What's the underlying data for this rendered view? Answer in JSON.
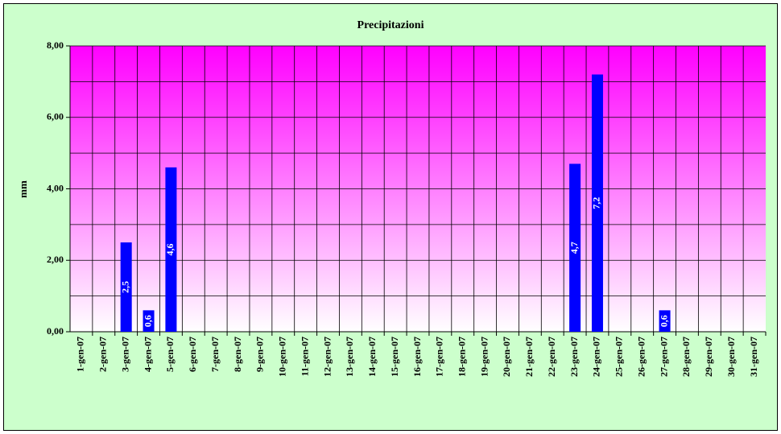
{
  "chart_data": {
    "type": "bar",
    "title": "Precipitazioni",
    "y_label": "mm",
    "categories": [
      "1-gen-07",
      "2-gen-07",
      "3-gen-07",
      "4-gen-07",
      "5-gen-07",
      "6-gen-07",
      "7-gen-07",
      "8-gen-07",
      "9-gen-07",
      "10-gen-07",
      "11-gen-07",
      "12-gen-07",
      "13-gen-07",
      "14-gen-07",
      "15-gen-07",
      "16-gen-07",
      "17-gen-07",
      "18-gen-07",
      "19-gen-07",
      "20-gen-07",
      "21-gen-07",
      "22-gen-07",
      "23-gen-07",
      "24-gen-07",
      "25-gen-07",
      "26-gen-07",
      "27-gen-07",
      "28-gen-07",
      "29-gen-07",
      "30-gen-07",
      "31-gen-07"
    ],
    "values": [
      null,
      null,
      2.5,
      0.6,
      4.6,
      null,
      null,
      null,
      null,
      null,
      null,
      null,
      null,
      null,
      null,
      null,
      null,
      null,
      null,
      null,
      null,
      null,
      4.7,
      7.2,
      null,
      null,
      0.6,
      null,
      null,
      null,
      null
    ],
    "value_labels": [
      null,
      null,
      "2,5",
      "0,6",
      "4,6",
      null,
      null,
      null,
      null,
      null,
      null,
      null,
      null,
      null,
      null,
      null,
      null,
      null,
      null,
      null,
      null,
      null,
      "4,7",
      "7,2",
      null,
      null,
      "0,6",
      null,
      null,
      null,
      null
    ],
    "color": "#0000ff",
    "ylim": [
      0,
      8
    ],
    "yticks": [
      {
        "value": 0,
        "label": "0,00"
      },
      {
        "value": 2,
        "label": "2,00"
      },
      {
        "value": 4,
        "label": "4,00"
      },
      {
        "value": 6,
        "label": "6,00"
      },
      {
        "value": 8,
        "label": "8,00"
      }
    ],
    "y_minor_ticks": [
      1,
      3,
      5,
      7
    ],
    "grid": true
  }
}
